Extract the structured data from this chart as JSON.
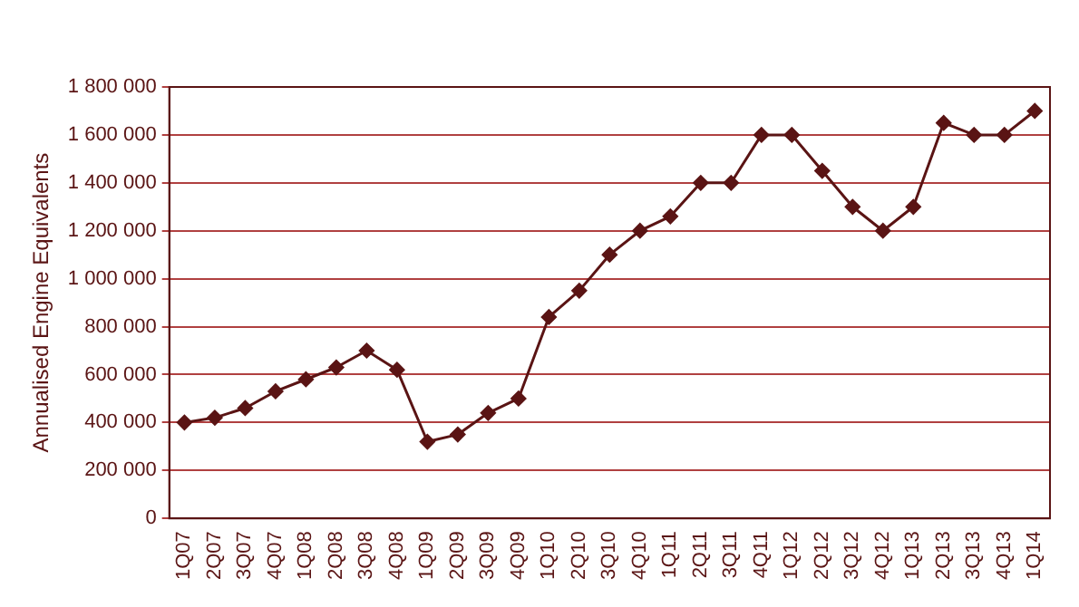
{
  "chart_data": {
    "type": "line",
    "ylabel": "Annualised Engine Equivalents",
    "categories": [
      "1Q07",
      "2Q07",
      "3Q07",
      "4Q07",
      "1Q08",
      "2Q08",
      "3Q08",
      "4Q08",
      "1Q09",
      "2Q09",
      "3Q09",
      "4Q09",
      "1Q10",
      "2Q10",
      "3Q10",
      "4Q10",
      "1Q11",
      "2Q11",
      "3Q11",
      "4Q11",
      "1Q12",
      "2Q12",
      "3Q12",
      "4Q12",
      "1Q13",
      "2Q13",
      "3Q13",
      "4Q13",
      "1Q14"
    ],
    "series": [
      {
        "color": "#5a1414",
        "values": [
          400000,
          420000,
          460000,
          530000,
          580000,
          630000,
          700000,
          620000,
          320000,
          350000,
          440000,
          500000,
          840000,
          950000,
          1100000,
          1200000,
          1260000,
          1400000,
          1400000,
          1600000,
          1600000,
          1450000,
          1300000,
          1200000,
          1300000,
          1650000,
          1600000,
          1600000,
          1700000
        ]
      }
    ],
    "ylim": [
      0,
      1800000
    ],
    "yticks": [
      {
        "value": 0,
        "label": "0"
      },
      {
        "value": 200000,
        "label": "200 000"
      },
      {
        "value": 400000,
        "label": "400 000"
      },
      {
        "value": 600000,
        "label": "600 000"
      },
      {
        "value": 800000,
        "label": "800 000"
      },
      {
        "value": 1000000,
        "label": "1 000 000"
      },
      {
        "value": 1200000,
        "label": "1 200 000"
      },
      {
        "value": 1400000,
        "label": "1 400 000"
      },
      {
        "value": 1600000,
        "label": "1 600 000"
      },
      {
        "value": 1800000,
        "label": "1 800 000"
      }
    ],
    "grid": "y",
    "legend": false,
    "marker": "diamond",
    "line_style": "solid"
  }
}
